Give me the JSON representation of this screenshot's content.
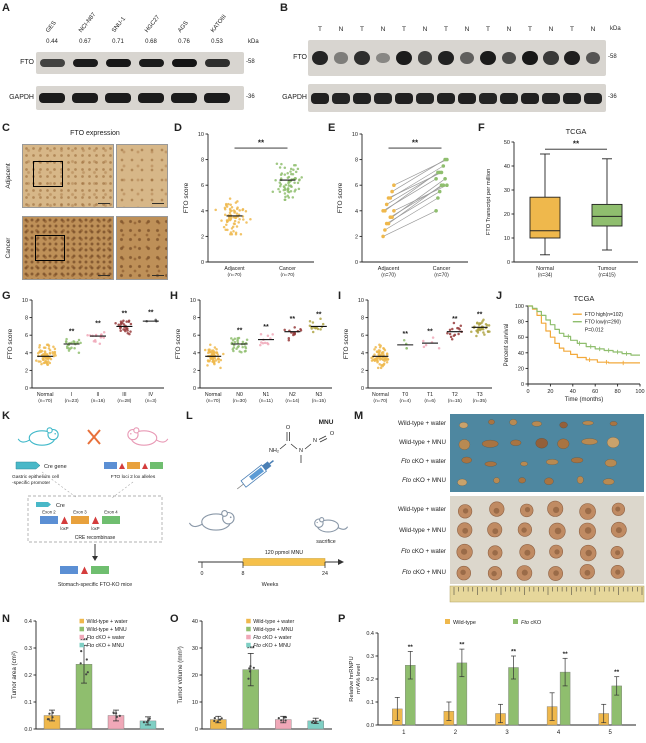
{
  "colors": {
    "yellow": "#EFB84C",
    "green": "#8FBE6E",
    "pink": "#F0A8B8",
    "teal": "#7FCFC4",
    "maroon": "#973B3B",
    "olive": "#AFA545",
    "dark": "#5A5A5A",
    "km_orange": "#F2A93B",
    "km_green": "#8FBE6E"
  },
  "panel_letters": {
    "A": "A",
    "B": "B",
    "C": "C",
    "D": "D",
    "E": "E",
    "F": "F",
    "G": "G",
    "H": "H",
    "I": "I",
    "J": "J",
    "K": "K",
    "L": "L",
    "M": "M",
    "N": "N",
    "O": "O",
    "P": "P"
  },
  "panelA": {
    "lanes": [
      "GES",
      "NCI-N87",
      "SNU-1",
      "HGC27",
      "AGS",
      "KATOIII"
    ],
    "values": [
      "0.44",
      "0.67",
      "0.71",
      "0.68",
      "0.76",
      "0.53"
    ],
    "kda": "kDa",
    "rows": [
      {
        "name": "FTO",
        "marker": "-58",
        "intensities": [
          0.75,
          0.95,
          0.97,
          0.95,
          0.99,
          0.85
        ]
      },
      {
        "name": "GAPDH",
        "marker": "-36",
        "intensities": [
          0.95,
          0.95,
          0.95,
          0.95,
          0.95,
          0.95
        ]
      }
    ]
  },
  "panelB": {
    "lanes": [
      "T",
      "N",
      "T",
      "N",
      "T",
      "N",
      "T",
      "N",
      "T",
      "N",
      "T",
      "N",
      "T",
      "N"
    ],
    "kda": "kDa",
    "rows": [
      {
        "name": "FTO",
        "marker": "-58",
        "intensities": [
          0.9,
          0.45,
          0.85,
          0.4,
          0.95,
          0.75,
          0.92,
          0.6,
          0.95,
          0.7,
          0.97,
          0.8,
          0.93,
          0.65
        ]
      },
      {
        "name": "GAPDH",
        "marker": "-36",
        "intensities": [
          0.93,
          0.9,
          0.92,
          0.9,
          0.93,
          0.9,
          0.92,
          0.93,
          0.9,
          0.92,
          0.93,
          0.9,
          0.92,
          0.9
        ]
      }
    ]
  },
  "panelC": {
    "title": "FTO expression",
    "rows": [
      {
        "name": "Adjacent"
      },
      {
        "name": "Cancer"
      }
    ]
  },
  "panelK": {
    "cre_gene": "Cre gene",
    "promoter_line1": "Gastric epithelium cell",
    "promoter_line2": "-specific promoter",
    "lox_alleles": "FTO loci 2 lox alleles",
    "cre": "Cre",
    "exons": [
      "Exon 2",
      "Exon 3",
      "Exon 4"
    ],
    "loxp": "loxP",
    "recombinase": "CRE recombinase",
    "result": "Stomach-specific FTO-KO mice"
  },
  "panelL": {
    "mnu": "MNU",
    "dose": "120 ppmol MNU",
    "weeks_label": "Weeks",
    "week_ticks": [
      "0",
      "8",
      "24"
    ],
    "sacrifice": "sacrifice",
    "atoms": {
      "nh2": "NH₂",
      "o1": "O",
      "n1": "N",
      "n2": "N",
      "o2": "O"
    }
  },
  "panelM": {
    "groups": [
      {
        "labels": [
          "Wild-type + water",
          "Wild-type + MNU",
          "Fto cKO + water",
          "Fto cKO + MNU"
        ]
      },
      {
        "labels": [
          "Wild-type + water",
          "Wild-type + MNU",
          "Fto cKO + water",
          "Fto cKO + MNU"
        ]
      }
    ]
  },
  "chart_data": [
    {
      "id": "D",
      "type": "scatter",
      "ylabel": "FTO score",
      "ylim": [
        0,
        10
      ],
      "yticks": [
        0,
        2,
        4,
        6,
        8,
        10
      ],
      "groups": [
        {
          "label": "Adjacent",
          "n_label": "(n=70)",
          "mean": 3.6,
          "sd": 0.65,
          "count": 70,
          "color": "yellow",
          "sig": ""
        },
        {
          "label": "Cancer",
          "n_label": "(n=70)",
          "mean": 6.4,
          "sd": 0.7,
          "count": 70,
          "color": "green",
          "sig": ""
        }
      ],
      "comparison": {
        "label": "**",
        "y": 8.9
      }
    },
    {
      "id": "E",
      "type": "paired-scatter",
      "ylabel": "FTO score",
      "ylim": [
        0,
        10
      ],
      "yticks": [
        0,
        2,
        4,
        6,
        8,
        10
      ],
      "groups": [
        {
          "label": "Adjacent",
          "n_label": "(n=70)",
          "color": "yellow"
        },
        {
          "label": "Cancer",
          "n_label": "(n=70)",
          "color": "green"
        }
      ],
      "pairs": [
        [
          2,
          4
        ],
        [
          2.5,
          5
        ],
        [
          3,
          5.5
        ],
        [
          3,
          6
        ],
        [
          3.5,
          6
        ],
        [
          3.5,
          6.5
        ],
        [
          4,
          6
        ],
        [
          4,
          6.5
        ],
        [
          4,
          7
        ],
        [
          4.5,
          7
        ],
        [
          5,
          7
        ],
        [
          5,
          7.5
        ],
        [
          5.5,
          8
        ],
        [
          6,
          8
        ]
      ],
      "comparison": {
        "label": "**",
        "y": 8.9
      }
    },
    {
      "id": "F",
      "type": "box",
      "title": "TCGA",
      "ylabel": "FTO Transcript per million",
      "ylim": [
        0,
        50
      ],
      "yticks": [
        0,
        10,
        20,
        30,
        40,
        50
      ],
      "boxes": [
        {
          "label": "Normal",
          "n_label": "(n=34)",
          "color": "yellow",
          "low": 3,
          "q1": 10,
          "median": 13,
          "q3": 27,
          "high": 45
        },
        {
          "label": "Tumour",
          "n_label": "(n=415)",
          "color": "green",
          "low": 5,
          "q1": 15,
          "median": 19,
          "q3": 24,
          "high": 43
        }
      ],
      "comparison": {
        "label": "**",
        "y": 47
      }
    },
    {
      "id": "G",
      "type": "scatter",
      "ylabel": "FTO score",
      "ylim": [
        0,
        10
      ],
      "yticks": [
        0,
        2,
        4,
        6,
        8,
        10
      ],
      "groups": [
        {
          "label": "Normal",
          "n_label": "(n=70)",
          "mean": 3.6,
          "sd": 0.6,
          "count": 70,
          "color": "yellow",
          "sig": ""
        },
        {
          "label": "I",
          "n_label": "(n=23)",
          "mean": 5.0,
          "sd": 0.45,
          "count": 23,
          "color": "green",
          "sig": "**"
        },
        {
          "label": "II",
          "n_label": "(n=16)",
          "mean": 5.9,
          "sd": 0.45,
          "count": 16,
          "color": "pink",
          "sig": "**"
        },
        {
          "label": "III",
          "n_label": "(n=28)",
          "mean": 7.0,
          "sd": 0.45,
          "count": 28,
          "color": "maroon",
          "sig": "**"
        },
        {
          "label": "IV",
          "n_label": "(n=3)",
          "mean": 7.6,
          "sd": 0.25,
          "count": 3,
          "color": "dark",
          "sig": "**"
        }
      ]
    },
    {
      "id": "H",
      "type": "scatter",
      "ylabel": "FTO score",
      "ylim": [
        0,
        10
      ],
      "yticks": [
        0,
        2,
        4,
        6,
        8,
        10
      ],
      "groups": [
        {
          "label": "Normal",
          "n_label": "(n=70)",
          "mean": 3.6,
          "sd": 0.6,
          "count": 70,
          "color": "yellow",
          "sig": ""
        },
        {
          "label": "N0",
          "n_label": "(n=30)",
          "mean": 5.0,
          "sd": 0.5,
          "count": 30,
          "color": "green",
          "sig": "**"
        },
        {
          "label": "N1",
          "n_label": "(n=11)",
          "mean": 5.5,
          "sd": 0.45,
          "count": 11,
          "color": "pink",
          "sig": "**"
        },
        {
          "label": "N2",
          "n_label": "(n=14)",
          "mean": 6.4,
          "sd": 0.45,
          "count": 14,
          "color": "maroon",
          "sig": "**"
        },
        {
          "label": "N3",
          "n_label": "(n=15)",
          "mean": 7.0,
          "sd": 0.4,
          "count": 15,
          "color": "olive",
          "sig": "**"
        }
      ]
    },
    {
      "id": "I",
      "type": "scatter",
      "ylabel": "FTO score",
      "ylim": [
        0,
        10
      ],
      "yticks": [
        0,
        2,
        4,
        6,
        8,
        10
      ],
      "groups": [
        {
          "label": "Normal",
          "n_label": "(n=70)",
          "mean": 3.6,
          "sd": 0.6,
          "count": 70,
          "color": "yellow",
          "sig": ""
        },
        {
          "label": "T0",
          "n_label": "(n=4)",
          "mean": 4.9,
          "sd": 0.35,
          "count": 4,
          "color": "green",
          "sig": "**"
        },
        {
          "label": "T1",
          "n_label": "(n=6)",
          "mean": 5.1,
          "sd": 0.4,
          "count": 6,
          "color": "pink",
          "sig": "**"
        },
        {
          "label": "T2",
          "n_label": "(n=15)",
          "mean": 6.4,
          "sd": 0.45,
          "count": 15,
          "color": "maroon",
          "sig": "**"
        },
        {
          "label": "T3",
          "n_label": "(n=35)",
          "mean": 6.9,
          "sd": 0.45,
          "count": 35,
          "color": "olive",
          "sig": "**"
        }
      ]
    },
    {
      "id": "J",
      "type": "km",
      "title": "TCGA",
      "ylabel": "Percent survival",
      "xlabel": "Time (months)",
      "xlim": [
        0,
        100
      ],
      "ylim": [
        0,
        100
      ],
      "xticks": [
        0,
        20,
        40,
        60,
        80,
        100
      ],
      "yticks": [
        0,
        20,
        40,
        60,
        80,
        100
      ],
      "pvalue": "P=0.012",
      "series": [
        {
          "name": "FTO high(n=102)",
          "color": "km_orange",
          "points": [
            [
              0,
              100
            ],
            [
              4,
              96
            ],
            [
              8,
              88
            ],
            [
              12,
              78
            ],
            [
              16,
              68
            ],
            [
              20,
              60
            ],
            [
              24,
              52
            ],
            [
              28,
              46
            ],
            [
              32,
              42
            ],
            [
              38,
              38
            ],
            [
              44,
              34
            ],
            [
              52,
              31
            ],
            [
              62,
              28
            ],
            [
              72,
              27
            ],
            [
              100,
              27
            ]
          ],
          "censors": [
            55,
            70,
            85
          ]
        },
        {
          "name": "FTO low(n=290)",
          "color": "km_green",
          "points": [
            [
              0,
              100
            ],
            [
              4,
              97
            ],
            [
              8,
              93
            ],
            [
              12,
              88
            ],
            [
              16,
              82
            ],
            [
              20,
              76
            ],
            [
              24,
              70
            ],
            [
              28,
              65
            ],
            [
              32,
              61
            ],
            [
              38,
              56
            ],
            [
              44,
              52
            ],
            [
              52,
              48
            ],
            [
              60,
              45
            ],
            [
              68,
              43
            ],
            [
              76,
              41
            ],
            [
              84,
              39
            ],
            [
              92,
              37
            ],
            [
              100,
              37
            ]
          ],
          "censors": [
            36,
            46,
            56,
            64,
            72,
            80,
            88
          ]
        }
      ]
    },
    {
      "id": "N",
      "type": "bar",
      "ylabel": "Tumor area (cm²)",
      "ylim": [
        0,
        0.4
      ],
      "yticks": [
        "0.0",
        "0.1",
        "0.2",
        "0.3",
        "0.4"
      ],
      "legend": [
        "Wild-type + water",
        "Wild-type + MNU",
        "Fto cKO + water",
        "Fto cKO + MNU"
      ],
      "bar_colors": [
        "yellow",
        "green",
        "pink",
        "teal"
      ],
      "values": [
        0.05,
        0.24,
        0.05,
        0.03
      ],
      "errors": [
        0.02,
        0.07,
        0.02,
        0.015
      ],
      "sig": [
        "",
        "***",
        "",
        ""
      ]
    },
    {
      "id": "O",
      "type": "bar",
      "ylabel": "Tumor volume (mm³)",
      "ylim": [
        0,
        40
      ],
      "yticks": [
        "0",
        "10",
        "20",
        "30",
        "40"
      ],
      "legend": [
        "Wild-type + water",
        "Wild-type + MNU",
        "Fto cKO + water",
        "Fto cKO + MNU"
      ],
      "bar_colors": [
        "yellow",
        "green",
        "pink",
        "teal"
      ],
      "values": [
        3.5,
        22,
        3.5,
        3
      ],
      "errors": [
        1.2,
        6,
        1.2,
        1
      ],
      "sig": [
        "",
        "***",
        "",
        ""
      ]
    },
    {
      "id": "P",
      "type": "grouped-bar",
      "ylabel_lines": [
        "Relative hnRNPU",
        "m⁶A% level"
      ],
      "ylim": [
        0,
        0.4
      ],
      "yticks": [
        "0.0",
        "0.1",
        "0.2",
        "0.3",
        "0.4"
      ],
      "categories": [
        "1",
        "2",
        "3",
        "4",
        "5"
      ],
      "series": [
        {
          "name": "Wild-type",
          "color": "yellow",
          "values": [
            0.07,
            0.06,
            0.05,
            0.08,
            0.05
          ],
          "errors": [
            0.05,
            0.04,
            0.04,
            0.06,
            0.04
          ]
        },
        {
          "name": "Fto cKO",
          "color": "green",
          "values": [
            0.26,
            0.27,
            0.25,
            0.23,
            0.17
          ],
          "errors": [
            0.06,
            0.06,
            0.05,
            0.06,
            0.04
          ]
        }
      ],
      "sig": [
        "**",
        "**",
        "**",
        "**",
        "**"
      ]
    }
  ]
}
